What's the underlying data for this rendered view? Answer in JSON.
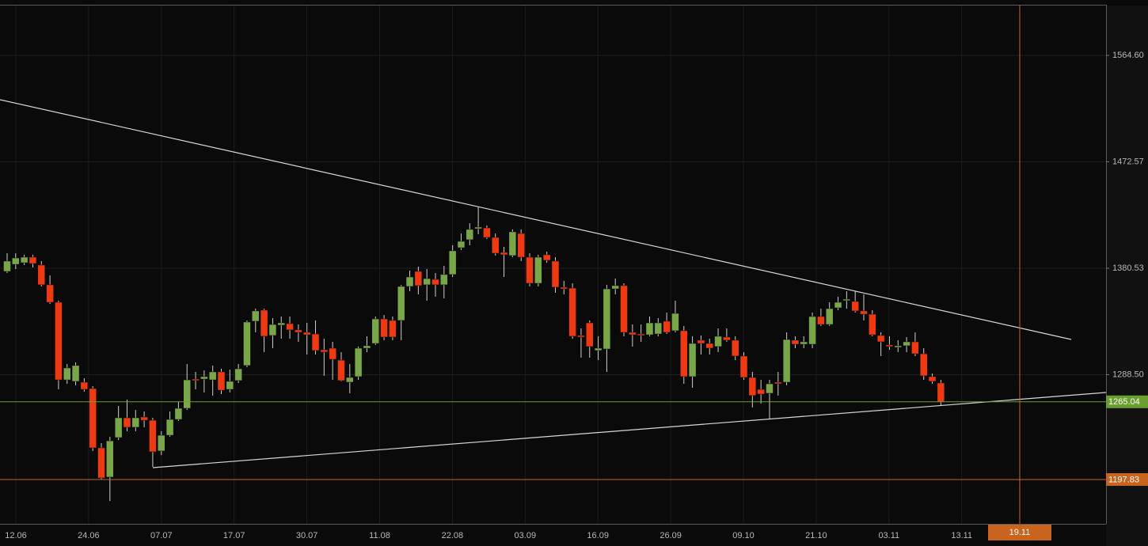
{
  "chart_data": {
    "type": "candlestick",
    "up_color": "#7aa64a",
    "down_color": "#ee3a12",
    "wick_color": "#d0d0d0",
    "grid": true,
    "ylim": [
      1159.5,
      1607.7
    ],
    "yticks": [
      {
        "value": 1564.6,
        "label": "1564.60"
      },
      1472.57,
      1380.53,
      {
        "value": 1288.5,
        "label": "1288.50"
      }
    ],
    "x_labels": [
      "12.06",
      "24.06",
      "07.07",
      "17.07",
      "30.07",
      "11.08",
      "22.08",
      "03.09",
      "16.09",
      "26.09",
      "09.10",
      "21.10",
      "03.11",
      "13.11"
    ],
    "price_lines": [
      {
        "value": 1265.04,
        "color": "#6a9e2f"
      },
      {
        "value": 1197.83,
        "color": "#c8641e"
      }
    ],
    "cursor": {
      "label": "19.11",
      "color": "#c8641e"
    },
    "open": [
      1377.8,
      1383.9,
      1385.3,
      1390.1,
      1383.3,
      1366.2,
      1351.1,
      1284.0,
      1282.7,
      1282.0,
      1276.5,
      1225.2,
      1199.9,
      1234.1,
      1251.2,
      1243.0,
      1251.9,
      1249.1,
      1222.5,
      1236.1,
      1249.8,
      1259.4,
      1284.7,
      1284.7,
      1284.0,
      1290.9,
      1275.8,
      1283.4,
      1296.4,
      1334.7,
      1344.3,
      1322.4,
      1331.3,
      1332.6,
      1327.2,
      1325.1,
      1323.7,
      1310.0,
      1311.4,
      1301.1,
      1282.0,
      1286.8,
      1311.4,
      1315.5,
      1336.7,
      1335.4,
      1335.4,
      1364.8,
      1377.8,
      1366.2,
      1370.9,
      1366.2,
      1375.1,
      1398.3,
      1405.2,
      1414.7,
      1415.4,
      1407.2,
      1394.2,
      1391.5,
      1410.6,
      1390.1,
      1367.5,
      1392.2,
      1386.7,
      1364.1,
      1363.4,
      1322.4,
      1333.3,
      1309.4,
      1310.7,
      1362.7,
      1365.5,
      1325.1,
      1323.7,
      1323.0,
      1323.7,
      1334.7,
      1326.5,
      1326.5,
      1286.8,
      1318.3,
      1315.5,
      1312.8,
      1321.0,
      1318.3,
      1304.6,
      1286.1,
      1275.8,
      1272.4,
      1282.0,
      1282.0,
      1318.3,
      1314.8,
      1314.8,
      1338.8,
      1331.9,
      1346.3,
      1352.5,
      1351.8,
      1343.6,
      1340.8,
      1322.4,
      1314.2,
      1312.1,
      1313.5,
      1316.9,
      1306.6,
      1286.8,
      1281.3
    ],
    "high": [
      1393.5,
      1393.5,
      1392.2,
      1392.2,
      1386.7,
      1374.4,
      1352.5,
      1297.7,
      1299.1,
      1285.4,
      1278.6,
      1229.3,
      1234.8,
      1261.5,
      1266.9,
      1258.0,
      1256.7,
      1251.2,
      1239.6,
      1256.7,
      1264.9,
      1297.7,
      1290.9,
      1292.2,
      1296.4,
      1293.6,
      1292.9,
      1297.7,
      1335.4,
      1345.6,
      1345.6,
      1337.4,
      1338.8,
      1338.8,
      1331.9,
      1333.3,
      1335.4,
      1319.6,
      1316.9,
      1308.0,
      1297.7,
      1312.8,
      1321.7,
      1338.8,
      1340.1,
      1338.8,
      1366.2,
      1378.5,
      1381.9,
      1379.8,
      1376.4,
      1382.6,
      1400.4,
      1410.6,
      1419.5,
      1433.2,
      1417.5,
      1410.6,
      1399.0,
      1414.1,
      1414.1,
      1393.5,
      1392.2,
      1394.9,
      1390.1,
      1369.6,
      1367.5,
      1328.5,
      1335.4,
      1321.7,
      1366.2,
      1371.6,
      1367.5,
      1331.9,
      1331.9,
      1338.8,
      1337.4,
      1342.2,
      1352.5,
      1330.6,
      1321.7,
      1322.4,
      1319.6,
      1328.5,
      1328.5,
      1321.7,
      1308.0,
      1290.9,
      1284.0,
      1284.0,
      1290.9,
      1325.1,
      1321.7,
      1321.7,
      1342.2,
      1345.6,
      1351.1,
      1355.9,
      1360.7,
      1360.7,
      1357.9,
      1344.3,
      1325.1,
      1321.7,
      1318.3,
      1321.0,
      1325.1,
      1311.4,
      1289.5,
      1284.0
    ],
    "low": [
      1376.4,
      1379.8,
      1383.3,
      1381.2,
      1364.8,
      1349.7,
      1275.8,
      1280.6,
      1279.3,
      1273.8,
      1222.5,
      1197.8,
      1179.3,
      1232.0,
      1239.6,
      1239.6,
      1243.0,
      1208.8,
      1219.0,
      1234.8,
      1248.5,
      1258.0,
      1275.8,
      1273.1,
      1270.4,
      1271.7,
      1273.1,
      1281.3,
      1295.0,
      1325.1,
      1308.0,
      1311.4,
      1319.6,
      1319.6,
      1316.9,
      1305.9,
      1305.9,
      1287.5,
      1284.0,
      1282.7,
      1272.4,
      1284.0,
      1308.0,
      1314.2,
      1318.3,
      1318.3,
      1318.3,
      1360.7,
      1357.9,
      1352.5,
      1355.9,
      1354.5,
      1373.0,
      1396.3,
      1400.4,
      1410.0,
      1405.8,
      1391.5,
      1373.0,
      1390.1,
      1386.7,
      1364.8,
      1364.8,
      1385.3,
      1359.3,
      1357.9,
      1319.6,
      1303.2,
      1303.2,
      1301.1,
      1290.9,
      1357.9,
      1321.7,
      1312.8,
      1316.9,
      1321.7,
      1321.7,
      1323.7,
      1325.1,
      1280.6,
      1277.2,
      1305.9,
      1305.9,
      1308.0,
      1316.9,
      1301.1,
      1284.0,
      1260.1,
      1263.5,
      1249.8,
      1270.4,
      1279.3,
      1311.4,
      1311.4,
      1311.4,
      1330.6,
      1330.6,
      1344.3,
      1345.6,
      1342.2,
      1335.4,
      1321.7,
      1304.6,
      1310.0,
      1308.0,
      1308.0,
      1304.6,
      1284.0,
      1280.6,
      1262.1
    ],
    "close": [
      1386.7,
      1389.4,
      1390.1,
      1384.6,
      1366.2,
      1351.1,
      1284.0,
      1294.3,
      1296.4,
      1275.8,
      1225.2,
      1199.2,
      1231.3,
      1251.2,
      1243.0,
      1251.2,
      1249.1,
      1221.8,
      1236.1,
      1249.8,
      1259.4,
      1284.0,
      1283.4,
      1286.8,
      1290.9,
      1275.1,
      1282.7,
      1293.6,
      1334.0,
      1343.6,
      1321.7,
      1331.9,
      1333.3,
      1327.2,
      1325.1,
      1323.0,
      1309.4,
      1308.0,
      1301.8,
      1283.4,
      1286.1,
      1311.4,
      1313.5,
      1336.7,
      1321.0,
      1321.0,
      1364.8,
      1373.0,
      1365.5,
      1371.6,
      1366.2,
      1375.1,
      1395.6,
      1403.8,
      1414.1,
      1416.1,
      1407.2,
      1393.5,
      1392.2,
      1412.0,
      1390.1,
      1367.5,
      1390.1,
      1387.4,
      1364.1,
      1362.7,
      1321.7,
      1321.0,
      1312.8,
      1311.4,
      1362.7,
      1365.5,
      1325.1,
      1323.0,
      1322.4,
      1333.3,
      1333.3,
      1325.1,
      1341.5,
      1286.8,
      1315.5,
      1315.5,
      1311.4,
      1321.7,
      1318.3,
      1304.6,
      1286.1,
      1270.4,
      1271.7,
      1280.6,
      1280.6,
      1318.9,
      1314.8,
      1316.9,
      1338.8,
      1331.9,
      1345.6,
      1351.1,
      1353.8,
      1343.6,
      1340.8,
      1323.0,
      1316.9,
      1312.8,
      1313.5,
      1316.9,
      1306.6,
      1287.5,
      1282.7,
      1264.9
    ]
  }
}
